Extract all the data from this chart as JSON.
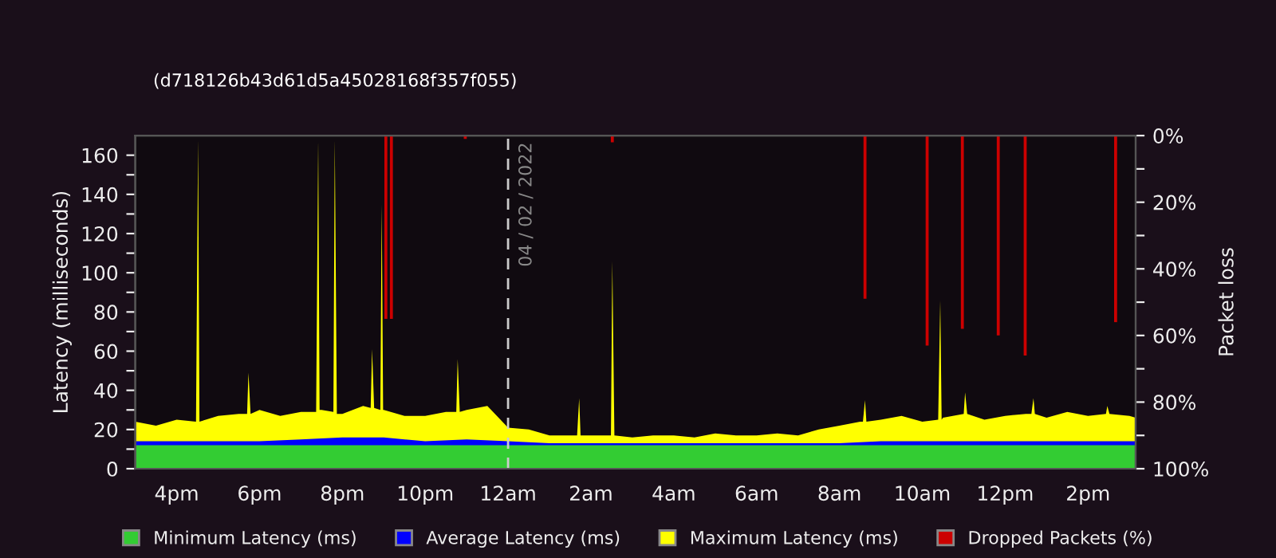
{
  "chart_data": {
    "type": "area",
    "subtitle": "(d718126b43d61d5a45028168f357f055)",
    "ylabel": "Latency (milliseconds)",
    "y2label": "Packet loss",
    "xlim": [
      "2022-02-03T15:00",
      "2022-02-04T15:09"
    ],
    "ylim": [
      0,
      170
    ],
    "y2lim": [
      100,
      0
    ],
    "xticks": [
      {
        "value": "2022-02-03T16:00",
        "label": "4pm"
      },
      {
        "value": "2022-02-03T18:00",
        "label": "6pm"
      },
      {
        "value": "2022-02-03T20:00",
        "label": "8pm"
      },
      {
        "value": "2022-02-03T22:00",
        "label": "10pm"
      },
      {
        "value": "2022-02-04T00:00",
        "label": "12am"
      },
      {
        "value": "2022-02-04T02:00",
        "label": "2am"
      },
      {
        "value": "2022-02-04T04:00",
        "label": "4am"
      },
      {
        "value": "2022-02-04T06:00",
        "label": "6am"
      },
      {
        "value": "2022-02-04T08:00",
        "label": "8am"
      },
      {
        "value": "2022-02-04T10:00",
        "label": "10am"
      },
      {
        "value": "2022-02-04T12:00",
        "label": "12pm"
      },
      {
        "value": "2022-02-04T14:00",
        "label": "2pm"
      }
    ],
    "yticks": [
      0,
      {
        "value": 10,
        "label": null
      },
      20,
      {
        "value": 30,
        "label": null
      },
      40,
      {
        "value": 50,
        "label": null
      },
      60,
      {
        "value": 70,
        "label": null
      },
      80,
      {
        "value": 90,
        "label": null
      },
      100,
      {
        "value": 110,
        "label": null
      },
      120,
      {
        "value": 130,
        "label": null
      },
      140,
      {
        "value": 150,
        "label": null
      },
      160
    ],
    "y2ticks": [
      {
        "value": 0,
        "label": "0%"
      },
      {
        "value": 10,
        "label": null
      },
      {
        "value": 20,
        "label": "20%"
      },
      {
        "value": 30,
        "label": null
      },
      {
        "value": 40,
        "label": "40%"
      },
      {
        "value": 50,
        "label": null
      },
      {
        "value": 60,
        "label": "60%"
      },
      {
        "value": 70,
        "label": null
      },
      {
        "value": 80,
        "label": "80%"
      },
      {
        "value": 90,
        "label": null
      },
      {
        "value": 100,
        "label": "100%"
      }
    ],
    "ref_lines": [
      {
        "axis": "x",
        "value": "2022-02-04T00:00",
        "label": "04 / 02 / 2022",
        "color": "#cccccc",
        "line_style": "dashed"
      }
    ],
    "legend": "bottom",
    "series": [
      {
        "name": "Maximum Latency (ms)",
        "color": "#ffff00",
        "x": [
          "2022-02-03T15:00",
          "2022-02-03T15:30",
          "2022-02-03T16:00",
          "2022-02-03T16:28",
          "2022-02-03T16:31",
          "2022-02-03T16:33",
          "2022-02-03T17:00",
          "2022-02-03T17:30",
          "2022-02-03T17:42",
          "2022-02-03T17:44",
          "2022-02-03T17:47",
          "2022-02-03T18:00",
          "2022-02-03T18:30",
          "2022-02-03T19:00",
          "2022-02-03T19:22",
          "2022-02-03T19:25",
          "2022-02-03T19:27",
          "2022-02-03T19:30",
          "2022-02-03T19:47",
          "2022-02-03T19:49",
          "2022-02-03T19:52",
          "2022-02-03T20:00",
          "2022-02-03T20:30",
          "2022-02-03T20:41",
          "2022-02-03T20:43",
          "2022-02-03T20:46",
          "2022-02-03T20:55",
          "2022-02-03T20:57",
          "2022-02-03T20:59",
          "2022-02-03T21:00",
          "2022-02-03T21:30",
          "2022-02-03T22:00",
          "2022-02-03T22:30",
          "2022-02-03T22:45",
          "2022-02-03T22:47",
          "2022-02-03T22:50",
          "2022-02-03T23:00",
          "2022-02-03T23:30",
          "2022-02-04T00:00",
          "2022-02-04T00:30",
          "2022-02-04T01:00",
          "2022-02-04T01:30",
          "2022-02-04T01:40",
          "2022-02-04T01:43",
          "2022-02-04T01:45",
          "2022-02-04T02:00",
          "2022-02-04T02:29",
          "2022-02-04T02:31",
          "2022-02-04T02:34",
          "2022-02-04T03:00",
          "2022-02-04T03:30",
          "2022-02-04T04:00",
          "2022-02-04T04:30",
          "2022-02-04T05:00",
          "2022-02-04T05:30",
          "2022-02-04T06:00",
          "2022-02-04T06:30",
          "2022-02-04T07:00",
          "2022-02-04T07:30",
          "2022-02-04T08:00",
          "2022-02-04T08:30",
          "2022-02-04T08:34",
          "2022-02-04T08:37",
          "2022-02-04T08:39",
          "2022-02-04T09:00",
          "2022-02-04T09:30",
          "2022-02-04T10:00",
          "2022-02-04T10:23",
          "2022-02-04T10:26",
          "2022-02-04T10:28",
          "2022-02-04T10:30",
          "2022-02-04T11:00",
          "2022-02-04T11:02",
          "2022-02-04T11:05",
          "2022-02-04T11:30",
          "2022-02-04T12:00",
          "2022-02-04T12:30",
          "2022-02-04T12:38",
          "2022-02-04T12:41",
          "2022-02-04T12:43",
          "2022-02-04T13:00",
          "2022-02-04T13:30",
          "2022-02-04T14:00",
          "2022-02-04T14:26",
          "2022-02-04T14:28",
          "2022-02-04T14:31",
          "2022-02-04T15:00",
          "2022-02-04T15:09"
        ],
        "values": [
          24,
          22,
          25,
          24,
          168,
          24,
          27,
          28,
          28,
          49,
          28,
          30,
          27,
          29,
          29,
          168,
          30,
          30,
          29,
          168,
          28,
          28,
          32,
          31,
          61,
          31,
          30,
          135,
          30,
          30,
          27,
          27,
          29,
          29,
          56,
          29,
          30,
          32,
          21,
          20,
          17,
          17,
          17,
          36,
          17,
          17,
          17,
          106,
          17,
          16,
          17,
          17,
          16,
          18,
          17,
          17,
          18,
          17,
          20,
          22,
          24,
          24,
          35,
          24,
          25,
          27,
          24,
          25,
          86,
          25,
          26,
          28,
          39,
          28,
          25,
          27,
          28,
          28,
          36,
          28,
          26,
          29,
          27,
          28,
          32,
          28,
          27,
          26
        ]
      },
      {
        "name": "Average Latency (ms)",
        "color": "#0000ff",
        "x": [
          "2022-02-03T15:00",
          "2022-02-03T16:00",
          "2022-02-03T17:00",
          "2022-02-03T18:00",
          "2022-02-03T19:00",
          "2022-02-03T20:00",
          "2022-02-03T21:00",
          "2022-02-03T22:00",
          "2022-02-03T23:00",
          "2022-02-04T00:00",
          "2022-02-04T01:00",
          "2022-02-04T02:00",
          "2022-02-04T03:00",
          "2022-02-04T04:00",
          "2022-02-04T05:00",
          "2022-02-04T06:00",
          "2022-02-04T07:00",
          "2022-02-04T08:00",
          "2022-02-04T09:00",
          "2022-02-04T10:00",
          "2022-02-04T11:00",
          "2022-02-04T12:00",
          "2022-02-04T13:00",
          "2022-02-04T14:00",
          "2022-02-04T15:00",
          "2022-02-04T15:09"
        ],
        "values": [
          14,
          14,
          14,
          14,
          15,
          16,
          16,
          14,
          15,
          14,
          13,
          13,
          13,
          13,
          13,
          13,
          13,
          13,
          14,
          14,
          14,
          14,
          14,
          14,
          14,
          14
        ]
      },
      {
        "name": "Minimum Latency (ms)",
        "color": "#33cc33",
        "x": [
          "2022-02-03T15:00",
          "2022-02-04T15:09"
        ],
        "values": [
          12,
          12
        ]
      },
      {
        "name": "Dropped Packets (%)",
        "color": "#cc0000",
        "type": "bar",
        "axis": "y2",
        "x": [
          "2022-02-03T21:03",
          "2022-02-03T21:11",
          "2022-02-03T22:58",
          "2022-02-04T02:31",
          "2022-02-04T08:37",
          "2022-02-04T10:07",
          "2022-02-04T10:58",
          "2022-02-04T11:50",
          "2022-02-04T12:29",
          "2022-02-04T14:40"
        ],
        "values": [
          55,
          55,
          1,
          2,
          49,
          63,
          58,
          60,
          66,
          56
        ]
      }
    ]
  }
}
